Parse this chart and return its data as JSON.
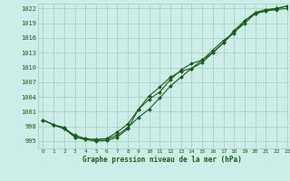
{
  "title": "Graphe pression niveau de la mer (hPa)",
  "background_color": "#cdeee8",
  "grid_color": "#aed4cc",
  "line_color": "#1a5c1a",
  "xlim": [
    -0.5,
    23
  ],
  "ylim": [
    993.5,
    1023.0
  ],
  "yticks": [
    995,
    998,
    1001,
    1004,
    1007,
    1010,
    1013,
    1016,
    1019,
    1022
  ],
  "xticks": [
    0,
    1,
    2,
    3,
    4,
    5,
    6,
    7,
    8,
    9,
    10,
    11,
    12,
    13,
    14,
    15,
    16,
    17,
    18,
    19,
    20,
    21,
    22,
    23
  ],
  "series1": [
    999.3,
    998.3,
    997.8,
    995.8,
    995.5,
    995.3,
    995.4,
    996.2,
    997.8,
    999.8,
    1001.5,
    1003.8,
    1006.2,
    1008.0,
    1009.8,
    1011.5,
    1013.5,
    1015.5,
    1017.0,
    1019.5,
    1021.0,
    1021.5,
    1021.8,
    1022.0
  ],
  "series2": [
    999.3,
    998.3,
    997.5,
    996.2,
    995.5,
    995.3,
    995.5,
    996.8,
    998.5,
    1001.5,
    1003.5,
    1005.0,
    1007.5,
    1009.5,
    1010.8,
    1011.5,
    1013.0,
    1015.0,
    1017.5,
    1019.5,
    1021.2,
    1021.8,
    1022.0,
    1022.5
  ],
  "series3": [
    999.3,
    998.3,
    997.5,
    995.8,
    995.3,
    995.0,
    995.1,
    995.8,
    997.5,
    1001.5,
    1004.2,
    1006.0,
    1008.0,
    1009.2,
    1009.8,
    1011.0,
    1013.0,
    1015.0,
    1017.2,
    1019.0,
    1021.0,
    1021.5,
    1022.0,
    1022.5
  ]
}
